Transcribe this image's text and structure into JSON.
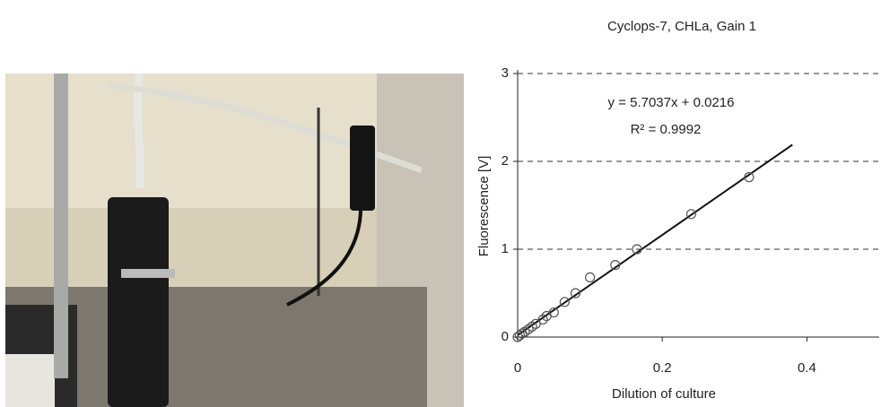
{
  "chart_data": {
    "type": "scatter",
    "title": "Cyclops-7, CHLa, Gain 1",
    "xlabel": "Dilution of culture",
    "ylabel": "Fluorescence [V]",
    "annotations": [
      "y = 5.7037x + 0.0216",
      "R² = 0.9992"
    ],
    "x": [
      0,
      0.003,
      0.006,
      0.01,
      0.015,
      0.02,
      0.025,
      0.035,
      0.04,
      0.05,
      0.065,
      0.08,
      0.1,
      0.135,
      0.165,
      0.24,
      0.32
    ],
    "values": [
      0,
      0.02,
      0.04,
      0.06,
      0.09,
      0.12,
      0.15,
      0.2,
      0.24,
      0.28,
      0.4,
      0.5,
      0.68,
      0.82,
      1.0,
      1.4,
      1.82
    ],
    "fit_line": {
      "x": [
        0,
        0.38
      ],
      "y": [
        0.0216,
        2.189
      ]
    },
    "color": "#555555",
    "xlim": [
      0,
      0.5
    ],
    "ylim": [
      0,
      3
    ],
    "xticks": [
      0,
      0.2,
      0.4
    ],
    "yticks": [
      0,
      1,
      2,
      3
    ],
    "grid": true
  }
}
